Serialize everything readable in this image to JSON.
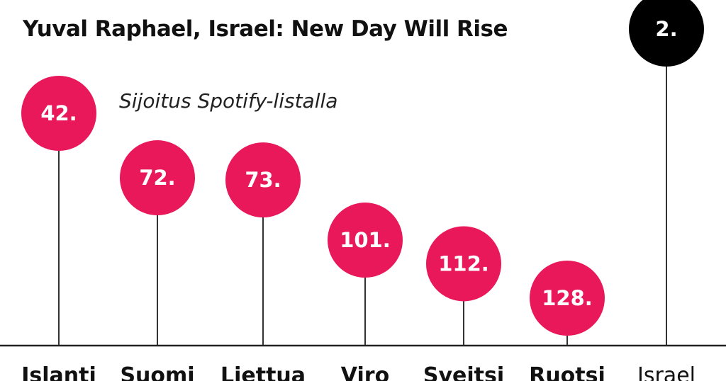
{
  "chart_data": {
    "type": "lollipop",
    "title": "Yuval Raphael, Israel: New Day Will Rise",
    "subtitle": "Sijoitus Spotify-listalla",
    "y_scale": "rank (lower rank = taller stem)",
    "categories": [
      "Islanti",
      "Suomi",
      "Liettua",
      "Viro",
      "Sveitsi",
      "Ruotsi",
      "Israel"
    ],
    "values": [
      42,
      72,
      73,
      101,
      112,
      128,
      2
    ],
    "labels": [
      "42.",
      "72.",
      "73.",
      "101.",
      "112.",
      "128.",
      "2."
    ],
    "colors": {
      "default": "#e8185a",
      "highlight": "#000000",
      "stem": "#333333",
      "baseline": "#222222"
    },
    "highlight_category": "Israel"
  }
}
